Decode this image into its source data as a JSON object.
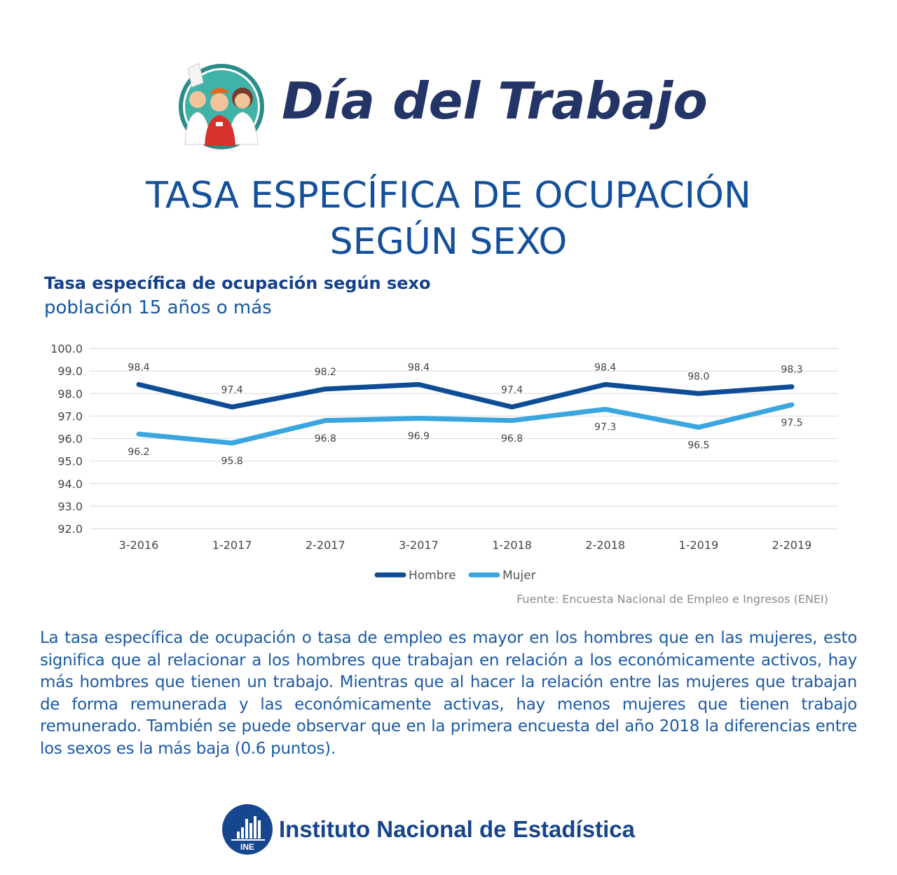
{
  "header": {
    "title": "Día del Trabajo",
    "illustration_icon": "workers-illustration-icon"
  },
  "main_title": {
    "line1": "TASA ESPECÍFICA DE OCUPACIÓN",
    "line2": "SEGÚN SEXO"
  },
  "chart_data": {
    "type": "line",
    "title": "Tasa específica de ocupación según sexo",
    "subtitle": "población 15 años o más",
    "categories": [
      "3-2016",
      "1-2017",
      "2-2017",
      "3-2017",
      "1-2018",
      "2-2018",
      "1-2019",
      "2-2019"
    ],
    "series": [
      {
        "name": "Hombre",
        "color": "#0e4d96",
        "values": [
          98.4,
          97.4,
          98.2,
          98.4,
          97.4,
          98.4,
          98.0,
          98.3
        ]
      },
      {
        "name": "Mujer",
        "color": "#3aa6e0",
        "values": [
          96.2,
          95.8,
          96.8,
          96.9,
          96.8,
          97.3,
          96.5,
          97.5
        ]
      }
    ],
    "ylim": [
      92.0,
      100.0
    ],
    "yticks": [
      "92.0",
      "93.0",
      "94.0",
      "95.0",
      "96.0",
      "97.0",
      "98.0",
      "99.0",
      "100.0"
    ],
    "grid": true,
    "legend_position": "bottom-center",
    "xlabel": "",
    "ylabel": ""
  },
  "source": "Fuente: Encuesta Nacional de Empleo e Ingresos (ENEI)",
  "description": "La tasa específica de ocupación o tasa de empleo es mayor en los hombres que en las mujeres, esto significa que al relacionar a los hombres que trabajan en relación a los económicamente activos, hay más hombres que tienen un trabajo.  Mientras que al hacer la relación entre las mujeres que trabajan de forma remunerada y las económicamente activas, hay menos mujeres que tienen trabajo remunerado. También se puede observar que en la primera encuesta del año 2018 la diferencias entre los sexos es la más baja (0.6 puntos).",
  "footer": {
    "logo_text": "INE",
    "name": "Instituto Nacional de Estadística"
  },
  "colors": {
    "navy": "#233466",
    "blue_title": "#13509b",
    "hombre": "#0e4d96",
    "mujer": "#3aa6e0"
  }
}
